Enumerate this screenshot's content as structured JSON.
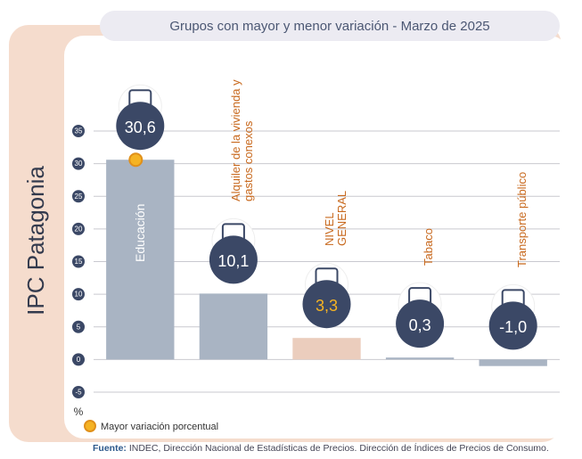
{
  "side_title": "IPC Patagonia",
  "chart_data": {
    "type": "bar",
    "title": "Grupos con mayor y menor variación - Marzo de 2025",
    "categories": [
      "Educación",
      "Alquiler de la vivienda y gastos conexos",
      "NIVEL GENERAL",
      "Tabaco",
      "Transporte público"
    ],
    "values": [
      30.6,
      10.1,
      3.3,
      0.3,
      -1.0
    ],
    "value_labels": [
      "30,6",
      "10,1",
      "3,3",
      "0,3",
      "-1,0"
    ],
    "colors": [
      "#a9b4c3",
      "#a9b4c3",
      "#ebcdbd",
      "#a9b4c3",
      "#a9b4c3"
    ],
    "ylim": [
      -5,
      35
    ],
    "yticks": [
      -5,
      0,
      5,
      10,
      15,
      20,
      25,
      30,
      35
    ],
    "grid": true,
    "y_label": "%",
    "legend": "Mayor variación porcentual",
    "source_label": "Fuente:",
    "source": "INDEC, Dirección Nacional de Estadísticas de Precios. Dirección de Índices de Precios de Consumo."
  }
}
